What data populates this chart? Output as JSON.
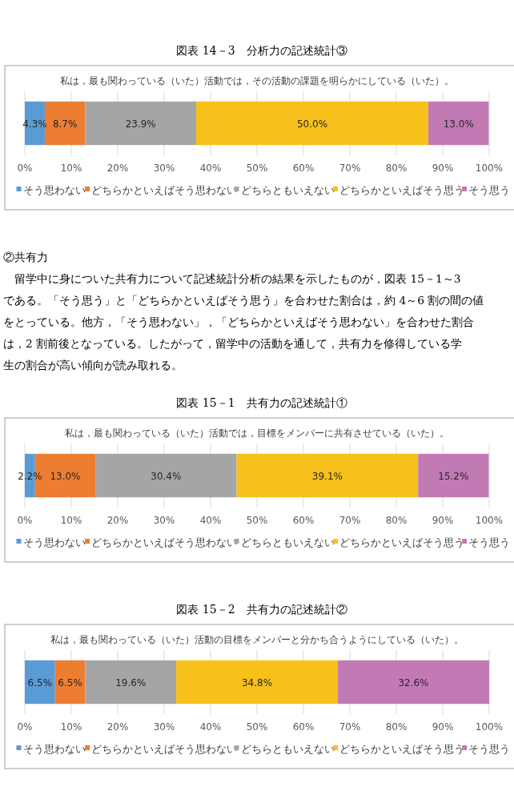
{
  "chart_data": [
    {
      "type": "bar",
      "orientation": "horizontal",
      "stacked": true,
      "title": "図表 14－3　分析力の記述統計③",
      "subtitle": "私は，最も関わっている（いた）活動では，その活動の課題を明らかにしている（いた）。",
      "categories": [
        null
      ],
      "xlim": [
        0,
        100
      ],
      "xticks": [
        {
          "value": 0,
          "label": "0%"
        },
        {
          "value": 10,
          "label": "10%"
        },
        {
          "value": 20,
          "label": "20%"
        },
        {
          "value": 30,
          "label": "30%"
        },
        {
          "value": 40,
          "label": "40%"
        },
        {
          "value": 50,
          "label": "50%"
        },
        {
          "value": 60,
          "label": "60%"
        },
        {
          "value": 70,
          "label": "70%"
        },
        {
          "value": 80,
          "label": "80%"
        },
        {
          "value": 90,
          "label": "90%"
        },
        {
          "value": 100,
          "label": "100%"
        }
      ],
      "grid": "x",
      "legend": "bottom",
      "series": [
        {
          "name": "そう思わない",
          "color": "#5b9bd5",
          "values": [
            4.3
          ],
          "value_labels": [
            "4.3%"
          ]
        },
        {
          "name": "どちらかといえばそう思わない",
          "color": "#ed7d31",
          "values": [
            8.7
          ],
          "value_labels": [
            "8.7%"
          ]
        },
        {
          "name": "どちらともいえない",
          "color": "#a5a5a5",
          "values": [
            23.9
          ],
          "value_labels": [
            "23.9%"
          ]
        },
        {
          "name": "どちらかといえばそう思う",
          "color": "#f8c01a",
          "values": [
            50.0
          ],
          "value_labels": [
            "50.0%"
          ]
        },
        {
          "name": "そう思う",
          "color": "#c27ab5",
          "values": [
            13.0
          ],
          "value_labels": [
            "13.0%"
          ]
        }
      ]
    },
    {
      "type": "bar",
      "orientation": "horizontal",
      "stacked": true,
      "title": "図表 15－1　共有力の記述統計①",
      "subtitle": "私は，最も関わっている（いた）活動では，目標をメンバーに共有させている（いた）。",
      "annotations": [
        "②共有力",
        "　留学中に身についた共有力について記述統計分析の結果を示したものが，図表 15－1～3",
        "である。「そう思う」と「どちらかといえばそう思う」を合わせた割合は，約 4～6 割の間の値",
        "をとっている。他方，「そう思わない」，「どちらかといえばそう思わない」を合わせた割合",
        "は，2 割前後となっている。したがって，留学中の活動を通して，共有力を修得している学",
        "生の割合が高い傾向が読み取れる。"
      ],
      "categories": [
        null
      ],
      "xlim": [
        0,
        100
      ],
      "xticks": [
        {
          "value": 0,
          "label": "0%"
        },
        {
          "value": 10,
          "label": "10%"
        },
        {
          "value": 20,
          "label": "20%"
        },
        {
          "value": 30,
          "label": "30%"
        },
        {
          "value": 40,
          "label": "40%"
        },
        {
          "value": 50,
          "label": "50%"
        },
        {
          "value": 60,
          "label": "60%"
        },
        {
          "value": 70,
          "label": "70%"
        },
        {
          "value": 80,
          "label": "80%"
        },
        {
          "value": 90,
          "label": "90%"
        },
        {
          "value": 100,
          "label": "100%"
        }
      ],
      "grid": "x",
      "legend": "bottom",
      "series": [
        {
          "name": "そう思わない",
          "color": "#5b9bd5",
          "values": [
            2.2
          ],
          "value_labels": [
            "2.2%"
          ]
        },
        {
          "name": "どちらかといえばそう思わない",
          "color": "#ed7d31",
          "values": [
            13.0
          ],
          "value_labels": [
            "13.0%"
          ]
        },
        {
          "name": "どちらともいえない",
          "color": "#a5a5a5",
          "values": [
            30.4
          ],
          "value_labels": [
            "30.4%"
          ]
        },
        {
          "name": "どちらかといえばそう思う",
          "color": "#f8c01a",
          "values": [
            39.1
          ],
          "value_labels": [
            "39.1%"
          ]
        },
        {
          "name": "そう思う",
          "color": "#c27ab5",
          "values": [
            15.2
          ],
          "value_labels": [
            "15.2%"
          ]
        }
      ]
    },
    {
      "type": "bar",
      "orientation": "horizontal",
      "stacked": true,
      "title": "図表 15－2　共有力の記述統計②",
      "subtitle": "私は，最も関わっている（いた）活動の目標をメンバーと分かち合うようにしている（いた）。",
      "categories": [
        null
      ],
      "xlim": [
        0,
        100
      ],
      "xticks": [
        {
          "value": 0,
          "label": "0%"
        },
        {
          "value": 10,
          "label": "10%"
        },
        {
          "value": 20,
          "label": "20%"
        },
        {
          "value": 30,
          "label": "30%"
        },
        {
          "value": 40,
          "label": "40%"
        },
        {
          "value": 50,
          "label": "50%"
        },
        {
          "value": 60,
          "label": "60%"
        },
        {
          "value": 70,
          "label": "70%"
        },
        {
          "value": 80,
          "label": "80%"
        },
        {
          "value": 90,
          "label": "90%"
        },
        {
          "value": 100,
          "label": "100%"
        }
      ],
      "grid": "x",
      "legend": "bottom",
      "series": [
        {
          "name": "そう思わない",
          "color": "#5b9bd5",
          "values": [
            6.5
          ],
          "value_labels": [
            "6.5%"
          ]
        },
        {
          "name": "どちらかといえばそう思わない",
          "color": "#ed7d31",
          "values": [
            6.5
          ],
          "value_labels": [
            "6.5%"
          ]
        },
        {
          "name": "どちらともいえない",
          "color": "#a5a5a5",
          "values": [
            19.6
          ],
          "value_labels": [
            "19.6%"
          ]
        },
        {
          "name": "どちらかといえばそう思う",
          "color": "#f8c01a",
          "values": [
            34.8
          ],
          "value_labels": [
            "34.8%"
          ]
        },
        {
          "name": "そう思う",
          "color": "#c27ab5",
          "values": [
            32.6
          ],
          "value_labels": [
            "32.6%"
          ]
        }
      ]
    }
  ]
}
